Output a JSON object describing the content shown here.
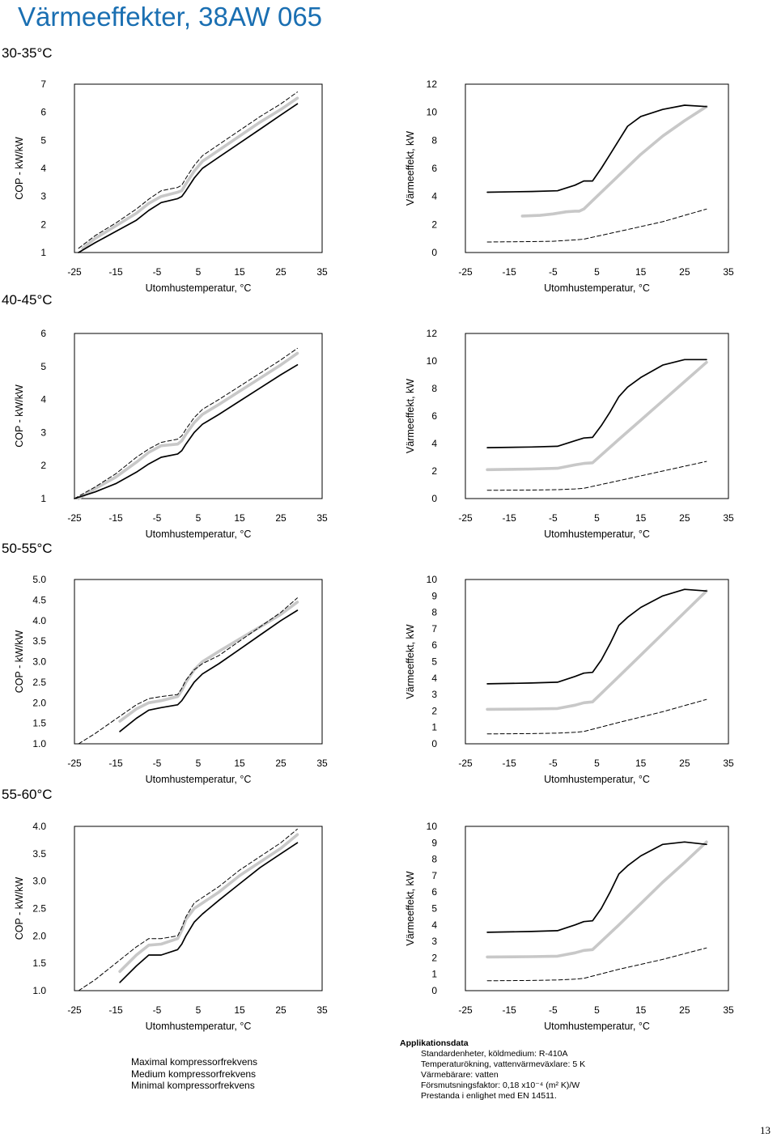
{
  "page": {
    "title": "Värmeeffekter, 38AW 065",
    "page_number": "13"
  },
  "sections": [
    {
      "label": "30-35°C"
    },
    {
      "label": "40-45°C"
    },
    {
      "label": "50-55°C"
    },
    {
      "label": "55-60°C"
    }
  ],
  "legend": {
    "items": [
      {
        "label": "Maximal kompressorfrekvens",
        "color": "#000000",
        "style": "solid"
      },
      {
        "label": "Medium kompressorfrekvens",
        "color": "#c8c8c8",
        "style": "solid-thick"
      },
      {
        "label": "Minimal kompressorfrekvens",
        "color": "#000000",
        "style": "dashed"
      }
    ]
  },
  "application_data": {
    "heading": "Applikationsdata",
    "items": [
      "Standardenheter, köldmedium: R-410A",
      "Temperaturökning, vattenvärmeväxlare: 5 K",
      "Värmebärare: vatten",
      "Försmutsningsfaktor: 0,18 x10⁻⁴ (m² K)/W",
      "Prestanda i enlighet med EN 14511."
    ]
  },
  "chart_data": [
    {
      "id": "cop-30-35",
      "type": "line",
      "section": "30-35°C",
      "xlabel": "Utomhustemperatur, °C",
      "ylabel": "COP - kW/kW",
      "xlim": [
        -25,
        35
      ],
      "ylim": [
        1,
        7
      ],
      "xticks": [
        "-25",
        "-15",
        "-5",
        "5",
        "15",
        "25",
        "35"
      ],
      "yticks": [
        "1",
        "2",
        "3",
        "4",
        "5",
        "6",
        "7"
      ],
      "series": [
        {
          "style": "max",
          "x": [
            -24,
            -20,
            -15,
            -10,
            -7,
            -4,
            0,
            1,
            2,
            4,
            6,
            10,
            15,
            20,
            25,
            29
          ],
          "y": [
            1.0,
            1.35,
            1.75,
            2.15,
            2.5,
            2.78,
            2.92,
            3.0,
            3.2,
            3.65,
            4.0,
            4.4,
            4.9,
            5.4,
            5.9,
            6.3
          ]
        },
        {
          "style": "med",
          "x": [
            -23,
            -20,
            -15,
            -10,
            -7,
            -4,
            0,
            1,
            2,
            4,
            6,
            10,
            15,
            20,
            25,
            29
          ],
          "y": [
            1.15,
            1.5,
            1.95,
            2.4,
            2.75,
            3.0,
            3.15,
            3.2,
            3.45,
            3.9,
            4.25,
            4.65,
            5.15,
            5.65,
            6.1,
            6.5
          ]
        },
        {
          "style": "min",
          "x": [
            -24,
            -20,
            -15,
            -10,
            -7,
            -4,
            0,
            1,
            2,
            4,
            6,
            10,
            15,
            20,
            25,
            29
          ],
          "y": [
            1.15,
            1.6,
            2.05,
            2.55,
            2.9,
            3.2,
            3.32,
            3.4,
            3.65,
            4.1,
            4.45,
            4.85,
            5.35,
            5.85,
            6.3,
            6.72
          ]
        }
      ]
    },
    {
      "id": "power-30-35",
      "type": "line",
      "section": "30-35°C",
      "xlabel": "Utomhustemperatur, °C",
      "ylabel": "Värmeeffekt, kW",
      "xlim": [
        -25,
        35
      ],
      "ylim": [
        0,
        12
      ],
      "xticks": [
        "-25",
        "-15",
        "-5",
        "5",
        "15",
        "25",
        "35"
      ],
      "yticks": [
        "0",
        "2",
        "4",
        "6",
        "8",
        "10",
        "12"
      ],
      "series": [
        {
          "style": "max",
          "x": [
            -20,
            -10,
            -4,
            0,
            2,
            4,
            6,
            8,
            10,
            12,
            15,
            20,
            25,
            30
          ],
          "y": [
            4.3,
            4.35,
            4.4,
            4.8,
            5.1,
            5.1,
            6.0,
            7.0,
            8.0,
            9.0,
            9.7,
            10.2,
            10.5,
            10.4
          ]
        },
        {
          "style": "med",
          "x": [
            -12,
            -8,
            -5,
            -2,
            0,
            1,
            2,
            5,
            10,
            15,
            20,
            25,
            30
          ],
          "y": [
            2.6,
            2.65,
            2.75,
            2.9,
            2.95,
            2.95,
            3.1,
            4.0,
            5.5,
            7.0,
            8.3,
            9.4,
            10.4
          ]
        },
        {
          "style": "min",
          "x": [
            -20,
            -10,
            -5,
            0,
            2,
            10,
            20,
            30
          ],
          "y": [
            0.75,
            0.78,
            0.8,
            0.9,
            0.95,
            1.5,
            2.2,
            3.1
          ]
        }
      ]
    },
    {
      "id": "cop-40-45",
      "type": "line",
      "section": "40-45°C",
      "xlabel": "Utomhustemperatur, °C",
      "ylabel": "COP - kW/kW",
      "xlim": [
        -25,
        35
      ],
      "ylim": [
        1,
        6
      ],
      "xticks": [
        "-25",
        "-15",
        "-5",
        "5",
        "15",
        "25",
        "35"
      ],
      "yticks": [
        "1",
        "2",
        "3",
        "4",
        "5",
        "6"
      ],
      "series": [
        {
          "style": "max",
          "x": [
            -25,
            -20,
            -15,
            -10,
            -7,
            -4,
            0,
            1,
            2,
            4,
            6,
            10,
            15,
            20,
            25,
            29
          ],
          "y": [
            1.0,
            1.2,
            1.45,
            1.8,
            2.05,
            2.25,
            2.35,
            2.45,
            2.65,
            3.0,
            3.25,
            3.55,
            3.95,
            4.35,
            4.75,
            5.05
          ]
        },
        {
          "style": "med",
          "x": [
            -24,
            -20,
            -15,
            -10,
            -7,
            -4,
            0,
            1,
            2,
            4,
            6,
            10,
            15,
            20,
            25,
            29
          ],
          "y": [
            1.0,
            1.3,
            1.65,
            2.1,
            2.4,
            2.6,
            2.65,
            2.75,
            2.95,
            3.3,
            3.55,
            3.85,
            4.25,
            4.65,
            5.05,
            5.4
          ]
        },
        {
          "style": "min",
          "x": [
            -25,
            -20,
            -15,
            -10,
            -7,
            -4,
            0,
            1,
            2,
            4,
            6,
            10,
            15,
            20,
            25,
            29
          ],
          "y": [
            1.0,
            1.35,
            1.75,
            2.25,
            2.5,
            2.7,
            2.8,
            2.9,
            3.1,
            3.45,
            3.7,
            4.0,
            4.4,
            4.8,
            5.2,
            5.55
          ]
        }
      ]
    },
    {
      "id": "power-40-45",
      "type": "line",
      "section": "40-45°C",
      "xlabel": "Utomhustemperatur, °C",
      "ylabel": "Värmeeffekt, kW",
      "xlim": [
        -25,
        35
      ],
      "ylim": [
        0,
        12
      ],
      "xticks": [
        "-25",
        "-15",
        "-5",
        "5",
        "15",
        "25",
        "35"
      ],
      "yticks": [
        "0",
        "2",
        "4",
        "6",
        "8",
        "10",
        "12"
      ],
      "series": [
        {
          "style": "max",
          "x": [
            -20,
            -10,
            -4,
            0,
            2,
            4,
            6,
            8,
            10,
            12,
            15,
            20,
            25,
            30
          ],
          "y": [
            3.7,
            3.75,
            3.8,
            4.2,
            4.4,
            4.45,
            5.3,
            6.3,
            7.4,
            8.1,
            8.8,
            9.7,
            10.1,
            10.1
          ]
        },
        {
          "style": "med",
          "x": [
            -20,
            -10,
            -4,
            0,
            2,
            4,
            10,
            15,
            20,
            25,
            30
          ],
          "y": [
            2.1,
            2.15,
            2.2,
            2.45,
            2.55,
            2.6,
            4.3,
            5.7,
            7.1,
            8.5,
            9.9
          ]
        },
        {
          "style": "min",
          "x": [
            -20,
            -10,
            -4,
            0,
            2,
            10,
            20,
            30
          ],
          "y": [
            0.6,
            0.62,
            0.65,
            0.7,
            0.75,
            1.3,
            2.0,
            2.7
          ]
        }
      ]
    },
    {
      "id": "cop-50-55",
      "type": "line",
      "section": "50-55°C",
      "xlabel": "Utomhustemperatur, °C",
      "ylabel": "COP - kW/kW",
      "xlim": [
        -25,
        35
      ],
      "ylim": [
        1.0,
        5.0
      ],
      "xticks": [
        "-25",
        "-15",
        "-5",
        "5",
        "15",
        "25",
        "35"
      ],
      "yticks": [
        "1.0",
        "1.5",
        "2.0",
        "2.5",
        "3.0",
        "3.5",
        "4.0",
        "4.5",
        "5.0"
      ],
      "series": [
        {
          "style": "max",
          "x": [
            -14,
            -10,
            -7,
            -4,
            0,
            1,
            2,
            4,
            6,
            10,
            15,
            20,
            25,
            29
          ],
          "y": [
            1.3,
            1.62,
            1.82,
            1.88,
            1.95,
            2.05,
            2.2,
            2.5,
            2.7,
            2.95,
            3.3,
            3.65,
            4.0,
            4.25
          ]
        },
        {
          "style": "med",
          "x": [
            -14,
            -10,
            -7,
            -4,
            0,
            1,
            2,
            4,
            6,
            10,
            15,
            20,
            25,
            29
          ],
          "y": [
            1.55,
            1.85,
            2.0,
            2.05,
            2.15,
            2.3,
            2.5,
            2.8,
            3.0,
            3.25,
            3.55,
            3.85,
            4.15,
            4.45
          ]
        },
        {
          "style": "min",
          "x": [
            -24,
            -20,
            -15,
            -10,
            -7,
            -4,
            0,
            1,
            2,
            4,
            6,
            10,
            15,
            20,
            25,
            29
          ],
          "y": [
            1.0,
            1.25,
            1.6,
            1.95,
            2.1,
            2.15,
            2.2,
            2.35,
            2.55,
            2.8,
            2.95,
            3.15,
            3.5,
            3.85,
            4.2,
            4.55
          ]
        }
      ]
    },
    {
      "id": "power-50-55",
      "type": "line",
      "section": "50-55°C",
      "xlabel": "Utomhustemperatur, °C",
      "ylabel": "Värmeeffekt, kW",
      "xlim": [
        -25,
        35
      ],
      "ylim": [
        0,
        10
      ],
      "xticks": [
        "-25",
        "-15",
        "-5",
        "5",
        "15",
        "25",
        "35"
      ],
      "yticks": [
        "0",
        "1",
        "2",
        "3",
        "4",
        "5",
        "6",
        "7",
        "8",
        "9",
        "10"
      ],
      "series": [
        {
          "style": "max",
          "x": [
            -20,
            -10,
            -4,
            0,
            2,
            4,
            6,
            8,
            10,
            12,
            15,
            20,
            25,
            30
          ],
          "y": [
            3.65,
            3.7,
            3.75,
            4.1,
            4.3,
            4.35,
            5.1,
            6.1,
            7.2,
            7.7,
            8.3,
            9.0,
            9.4,
            9.3
          ]
        },
        {
          "style": "med",
          "x": [
            -20,
            -10,
            -4,
            0,
            2,
            4,
            10,
            15,
            20,
            25,
            30
          ],
          "y": [
            2.1,
            2.12,
            2.15,
            2.35,
            2.5,
            2.55,
            4.1,
            5.4,
            6.7,
            8.0,
            9.3
          ]
        },
        {
          "style": "min",
          "x": [
            -20,
            -10,
            -4,
            0,
            2,
            10,
            20,
            30
          ],
          "y": [
            0.6,
            0.62,
            0.65,
            0.7,
            0.75,
            1.3,
            1.95,
            2.7
          ]
        }
      ]
    },
    {
      "id": "cop-55-60",
      "type": "line",
      "section": "55-60°C",
      "xlabel": "Utomhustemperatur, °C",
      "ylabel": "COP - kW/kW",
      "xlim": [
        -25,
        35
      ],
      "ylim": [
        1.0,
        4.0
      ],
      "xticks": [
        "-25",
        "-15",
        "-5",
        "5",
        "15",
        "25",
        "35"
      ],
      "yticks": [
        "1.0",
        "1.5",
        "2.0",
        "2.5",
        "3.0",
        "3.5",
        "4.0"
      ],
      "series": [
        {
          "style": "max",
          "x": [
            -14,
            -10,
            -7,
            -4,
            0,
            1,
            2,
            4,
            6,
            10,
            15,
            20,
            25,
            29
          ],
          "y": [
            1.15,
            1.45,
            1.65,
            1.65,
            1.75,
            1.85,
            2.0,
            2.25,
            2.4,
            2.65,
            2.95,
            3.25,
            3.5,
            3.7
          ]
        },
        {
          "style": "med",
          "x": [
            -14,
            -10,
            -7,
            -4,
            0,
            1,
            2,
            4,
            6,
            10,
            15,
            20,
            25,
            29
          ],
          "y": [
            1.35,
            1.65,
            1.83,
            1.85,
            1.95,
            2.1,
            2.3,
            2.5,
            2.6,
            2.8,
            3.1,
            3.35,
            3.6,
            3.85
          ]
        },
        {
          "style": "min",
          "x": [
            -24,
            -20,
            -15,
            -10,
            -7,
            -4,
            0,
            1,
            2,
            4,
            6,
            10,
            15,
            20,
            25,
            29
          ],
          "y": [
            1.0,
            1.2,
            1.5,
            1.8,
            1.95,
            1.95,
            2.0,
            2.15,
            2.35,
            2.6,
            2.7,
            2.9,
            3.2,
            3.45,
            3.7,
            3.95
          ]
        }
      ]
    },
    {
      "id": "power-55-60",
      "type": "line",
      "section": "55-60°C",
      "xlabel": "Utomhustemperatur, °C",
      "ylabel": "Värmeeffekt, kW",
      "xlim": [
        -25,
        35
      ],
      "ylim": [
        0,
        10
      ],
      "xticks": [
        "-25",
        "-15",
        "-5",
        "5",
        "15",
        "25",
        "35"
      ],
      "yticks": [
        "0",
        "1",
        "2",
        "3",
        "4",
        "5",
        "6",
        "7",
        "8",
        "9",
        "10"
      ],
      "series": [
        {
          "style": "max",
          "x": [
            -20,
            -10,
            -4,
            0,
            2,
            4,
            6,
            8,
            10,
            12,
            15,
            20,
            25,
            30
          ],
          "y": [
            3.55,
            3.6,
            3.65,
            4.0,
            4.2,
            4.25,
            5.0,
            6.0,
            7.1,
            7.6,
            8.2,
            8.9,
            9.05,
            8.9
          ]
        },
        {
          "style": "med",
          "x": [
            -20,
            -10,
            -4,
            0,
            2,
            4,
            10,
            15,
            20,
            25,
            30
          ],
          "y": [
            2.05,
            2.07,
            2.1,
            2.3,
            2.45,
            2.5,
            4.0,
            5.3,
            6.6,
            7.8,
            9.05
          ]
        },
        {
          "style": "min",
          "x": [
            -20,
            -10,
            -4,
            0,
            2,
            10,
            20,
            30
          ],
          "y": [
            0.6,
            0.62,
            0.65,
            0.7,
            0.75,
            1.3,
            1.9,
            2.6
          ]
        }
      ]
    }
  ]
}
